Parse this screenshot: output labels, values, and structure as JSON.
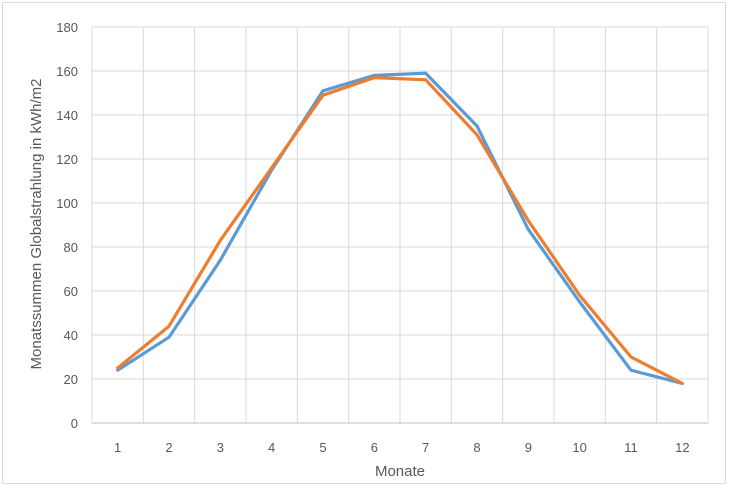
{
  "chart_data": {
    "type": "line",
    "title": "",
    "xlabel": "Monate",
    "ylabel": "Monatssummen  Globalstrahlung in kWh/m2",
    "categories": [
      "1",
      "2",
      "3",
      "4",
      "5",
      "6",
      "7",
      "8",
      "9",
      "10",
      "11",
      "12"
    ],
    "ylim": [
      0,
      180
    ],
    "yticks": [
      "0",
      "20",
      "40",
      "60",
      "80",
      "100",
      "120",
      "140",
      "160",
      "180"
    ],
    "grid": true,
    "legend": "none",
    "series": [
      {
        "color": "#5b9bd5",
        "values": [
          24,
          39,
          74,
          115,
          151,
          158,
          159,
          135,
          88,
          55,
          24,
          18
        ]
      },
      {
        "color": "#ed7d31",
        "values": [
          25,
          44,
          83,
          116,
          149,
          157,
          156,
          131,
          92,
          58,
          30,
          18
        ]
      }
    ]
  }
}
